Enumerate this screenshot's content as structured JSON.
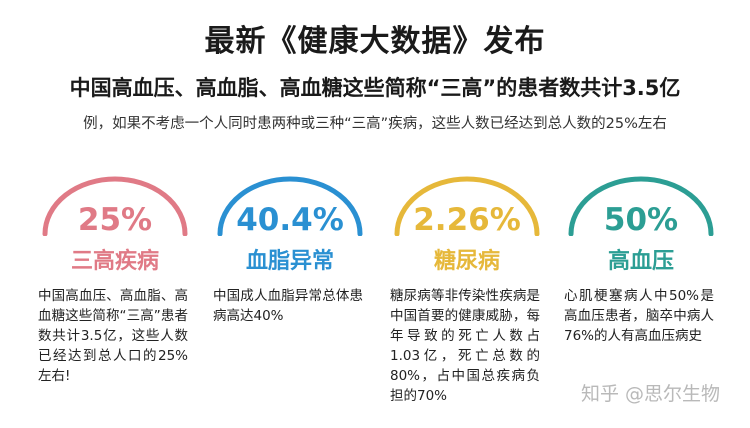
{
  "title": "最新《健康大数据》发布",
  "subtitle": "中国高血压、高血脂、高血糖这些简称“三高”的患者数共计3.5亿",
  "note": "例，如果不考虑一个人同时患两种或三种“三高”疾病，这些人数已经达到总人数的25%左右",
  "cards": [
    {
      "percent": "25%",
      "label": "三高疾病",
      "color": "#e07a86",
      "text": "中国高血压、高血脂、高血糖这些简称“三高”患者数共计3.5亿，这些人数已经达到总人口的25%左右!"
    },
    {
      "percent": "40.4%",
      "label": "血脂异常",
      "color": "#2a90d2",
      "text": "中国成人血脂异常总体患病高达40%"
    },
    {
      "percent": "2.26%",
      "label": "糖尿病",
      "color": "#e6b83a",
      "text": "糖尿病等非传染性疾病是中国首要的健康威胁，每年导致的死亡人数占1.03亿，死亡总数的80%，占中国总疾病负担的70%"
    },
    {
      "percent": "50%",
      "label": "高血压",
      "color": "#2c9e94",
      "text": "心肌梗塞病人中50%是高血压患者，脑卒中病人76%的人有高血压病史"
    }
  ],
  "watermark": "知乎 @思尔生物"
}
